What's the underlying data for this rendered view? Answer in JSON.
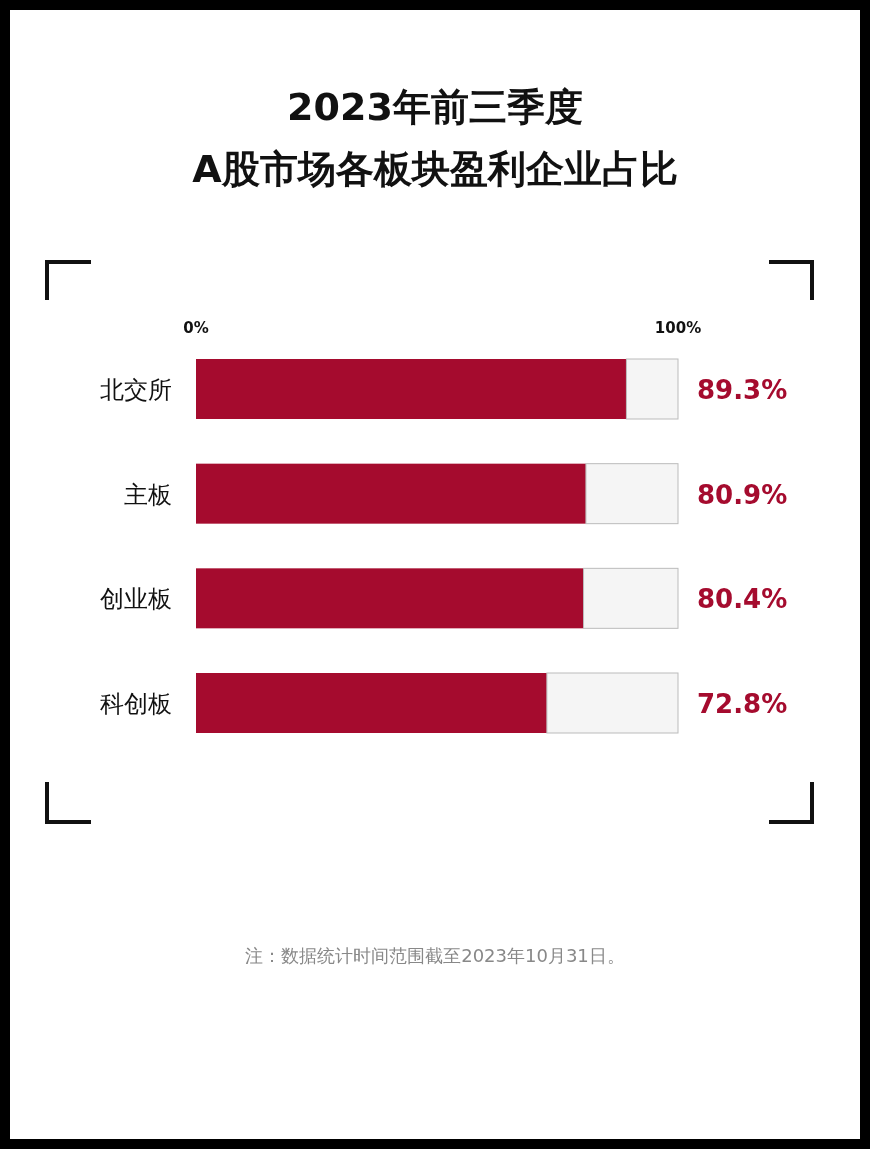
{
  "chart_data": {
    "type": "bar",
    "orientation": "horizontal",
    "stacked": true,
    "title": "2023年前三季度\nA股市场各板块盈利企业占比",
    "categories": [
      "北交所",
      "主板",
      "创业板",
      "科创板"
    ],
    "series": [
      {
        "color": "#a50b2e",
        "values": [
          89.3,
          80.9,
          80.4,
          72.8
        ],
        "value_labels": [
          "89.3%",
          "80.9%",
          "80.4%",
          "72.8%"
        ]
      },
      {
        "color": "#f5f5f5",
        "values": [
          10.7,
          19.1,
          19.6,
          27.2
        ]
      }
    ],
    "xlim": [
      0,
      100
    ],
    "xticks": [
      {
        "value": 0,
        "label": "0%"
      },
      {
        "value": 100,
        "label": "100%"
      }
    ],
    "annotations": [
      "注：数据统计时间范围截至2023年10月31日。"
    ]
  }
}
